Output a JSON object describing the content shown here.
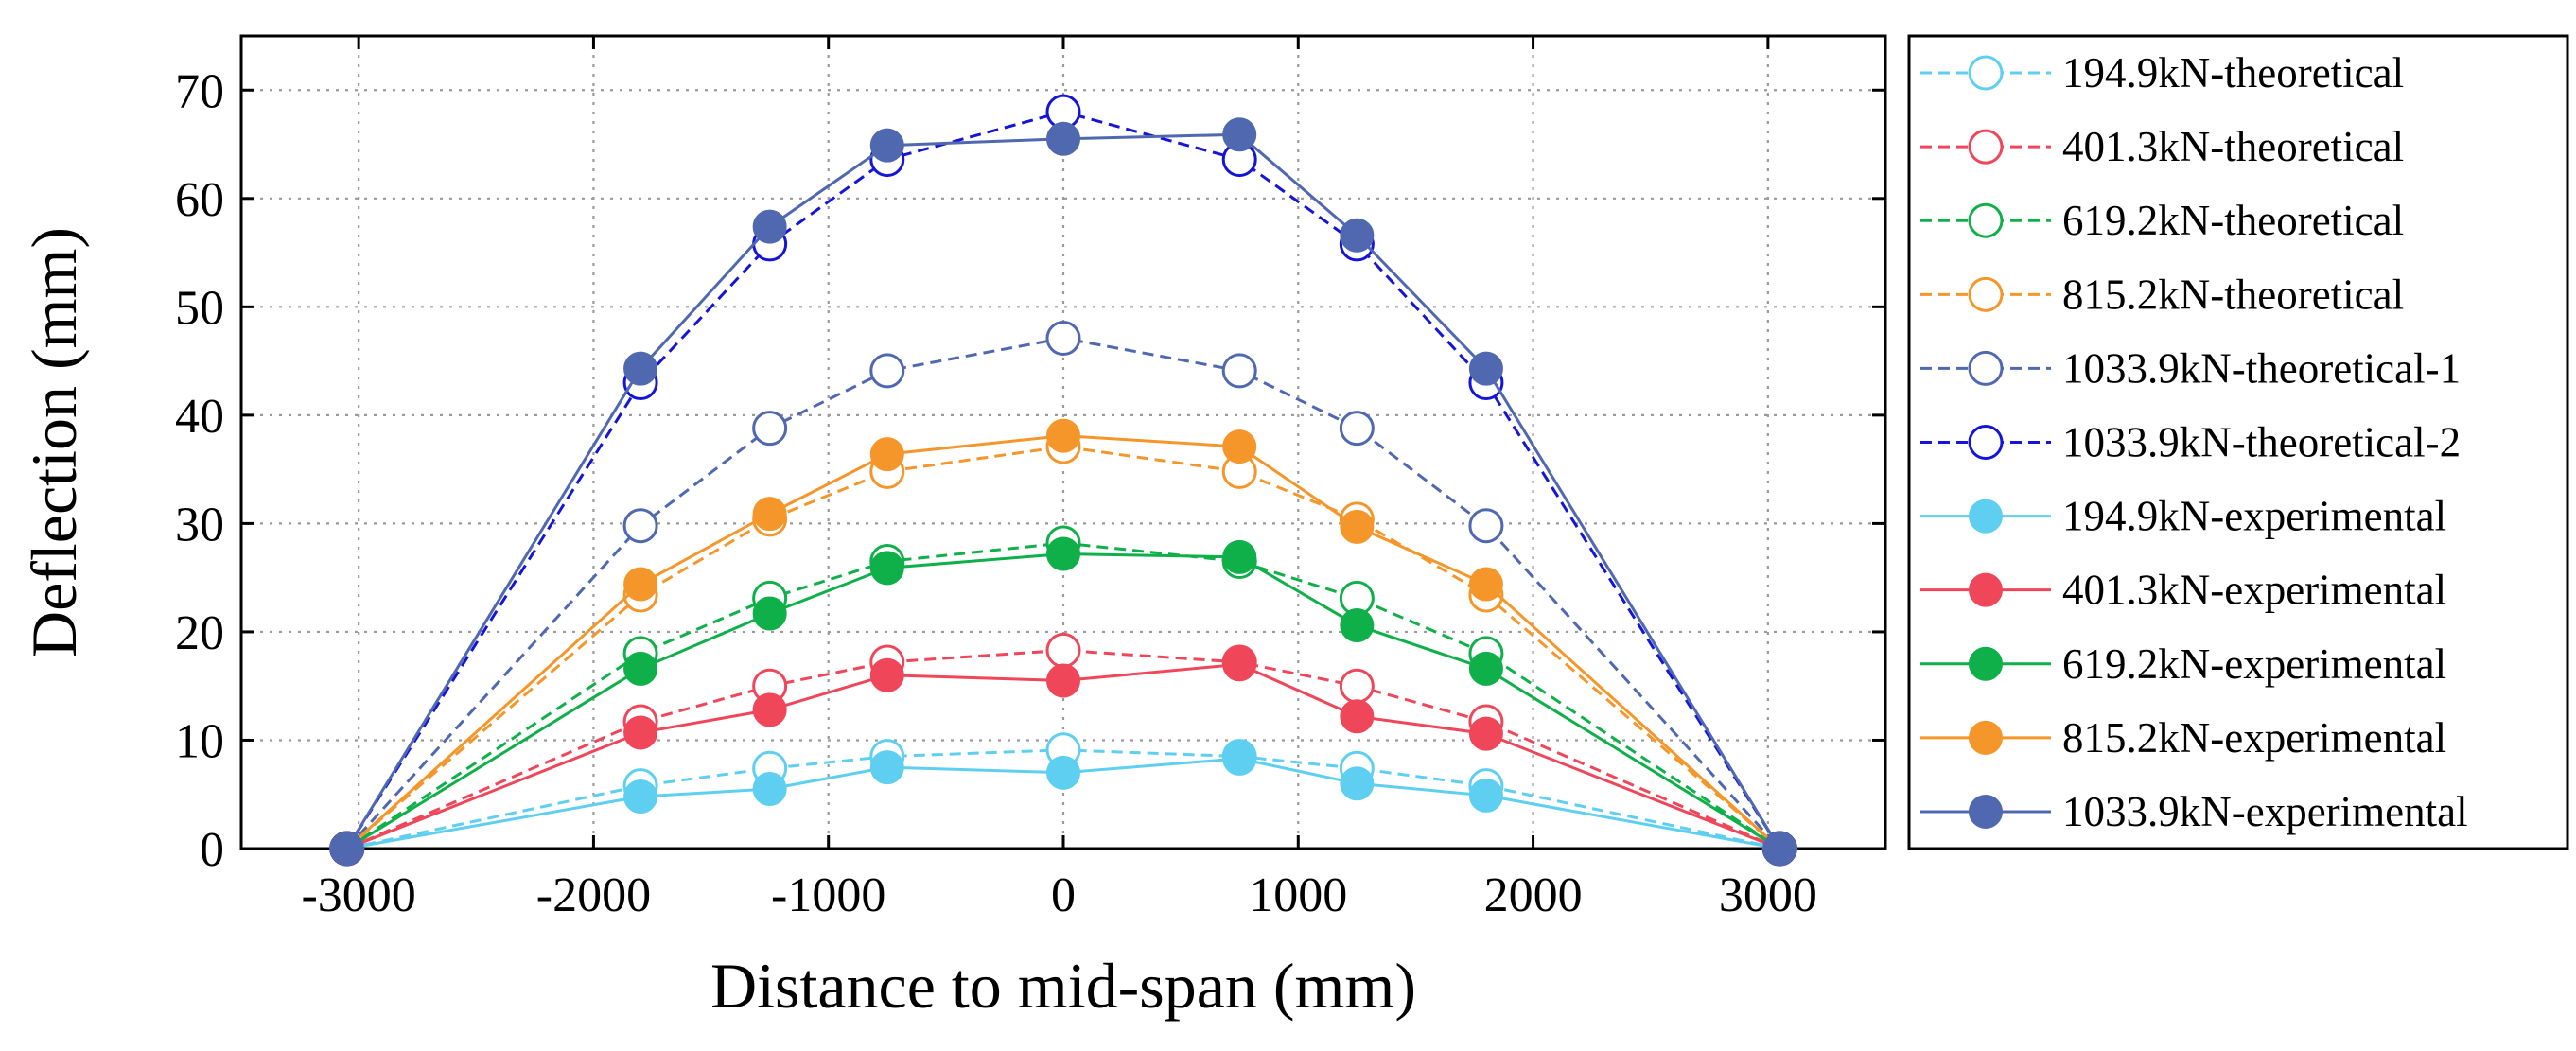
{
  "chart_data": {
    "type": "line",
    "xlabel": "Distance to mid-span (mm)",
    "ylabel": "Deflection (mm)",
    "xlim": [
      -3500,
      3500
    ],
    "ylim": [
      0,
      75
    ],
    "xticks": [
      -3000,
      -2000,
      -1000,
      0,
      1000,
      2000,
      3000
    ],
    "xtick_labels": [
      "-3000",
      "-2000",
      "-1000",
      "0",
      "1000",
      "2000",
      "3000"
    ],
    "yticks": [
      0,
      10,
      20,
      30,
      40,
      50,
      60,
      70
    ],
    "ytick_labels": [
      "0",
      "10",
      "20",
      "30",
      "40",
      "50",
      "60",
      "70"
    ],
    "grid": true,
    "legend_position": "outside-right",
    "series": [
      {
        "name": "194.9kN-theoretical",
        "color": "#5ecff0",
        "line": "dashed",
        "marker": "open-circle",
        "x": [
          -3050,
          -1800,
          -1250,
          -750,
          0,
          750,
          1250,
          1800,
          3050
        ],
        "y": [
          0,
          5.8,
          7.4,
          8.5,
          9.1,
          8.5,
          7.4,
          5.8,
          0
        ]
      },
      {
        "name": "401.3kN-theoretical",
        "color": "#f0465a",
        "line": "dashed",
        "marker": "open-circle",
        "x": [
          -3050,
          -1800,
          -1250,
          -750,
          0,
          750,
          1250,
          1800,
          3050
        ],
        "y": [
          0,
          11.7,
          15.0,
          17.2,
          18.3,
          17.2,
          15.0,
          11.7,
          0
        ]
      },
      {
        "name": "619.2kN-theoretical",
        "color": "#0fb04a",
        "line": "dashed",
        "marker": "open-circle",
        "x": [
          -3050,
          -1800,
          -1250,
          -750,
          0,
          750,
          1250,
          1800,
          3050
        ],
        "y": [
          0,
          18.0,
          23.1,
          26.5,
          28.2,
          26.5,
          23.1,
          18.0,
          0
        ]
      },
      {
        "name": "815.2kN-theoretical",
        "color": "#f5962a",
        "line": "dashed",
        "marker": "open-circle",
        "x": [
          -3050,
          -1800,
          -1250,
          -750,
          0,
          750,
          1250,
          1800,
          3050
        ],
        "y": [
          0,
          23.4,
          30.4,
          34.8,
          37.1,
          34.8,
          30.4,
          23.4,
          0
        ]
      },
      {
        "name": "1033.9kN-theoretical-1",
        "color": "#5068b0",
        "line": "dashed",
        "marker": "open-circle",
        "x": [
          -3050,
          -1800,
          -1250,
          -750,
          0,
          750,
          1250,
          1800,
          3050
        ],
        "y": [
          0,
          29.8,
          38.8,
          44.1,
          47.1,
          44.1,
          38.8,
          29.8,
          0
        ]
      },
      {
        "name": "1033.9kN-theoretical-2",
        "color": "#1515d8",
        "line": "dashed",
        "marker": "open-circle",
        "x": [
          -3050,
          -1800,
          -1250,
          -750,
          0,
          750,
          1250,
          1800,
          3050
        ],
        "y": [
          0,
          43.0,
          55.8,
          63.6,
          68.0,
          63.6,
          55.8,
          43.0,
          0
        ]
      },
      {
        "name": "194.9kN-experimental",
        "color": "#5ecff0",
        "line": "solid",
        "marker": "filled-circle",
        "x": [
          -3050,
          -1800,
          -1250,
          -750,
          0,
          750,
          1250,
          1800,
          3050
        ],
        "y": [
          0,
          4.8,
          5.5,
          7.5,
          7.0,
          8.3,
          6.0,
          4.9,
          0
        ]
      },
      {
        "name": "401.3kN-experimental",
        "color": "#f0465a",
        "line": "solid",
        "marker": "filled-circle",
        "x": [
          -3050,
          -1800,
          -1250,
          -750,
          0,
          750,
          1250,
          1800,
          3050
        ],
        "y": [
          0,
          10.7,
          12.8,
          16.0,
          15.5,
          17.0,
          12.2,
          10.6,
          0
        ]
      },
      {
        "name": "619.2kN-experimental",
        "color": "#0fb04a",
        "line": "solid",
        "marker": "filled-circle",
        "x": [
          -3050,
          -1800,
          -1250,
          -750,
          0,
          750,
          1250,
          1800,
          3050
        ],
        "y": [
          0,
          16.6,
          21.7,
          25.9,
          27.2,
          26.9,
          20.6,
          16.6,
          0
        ]
      },
      {
        "name": "815.2kN-experimental",
        "color": "#f5962a",
        "line": "solid",
        "marker": "filled-circle",
        "x": [
          -3050,
          -1800,
          -1250,
          -750,
          0,
          750,
          1250,
          1800,
          3050
        ],
        "y": [
          0,
          24.4,
          30.9,
          36.4,
          38.1,
          37.1,
          29.7,
          24.4,
          0
        ]
      },
      {
        "name": "1033.9kN-experimental",
        "color": "#5068b0",
        "line": "solid",
        "marker": "filled-circle",
        "x": [
          -3050,
          -1800,
          -1250,
          -750,
          0,
          750,
          1250,
          1800,
          3050
        ],
        "y": [
          0,
          44.3,
          57.4,
          64.9,
          65.5,
          65.9,
          56.6,
          44.3,
          0
        ]
      }
    ]
  }
}
